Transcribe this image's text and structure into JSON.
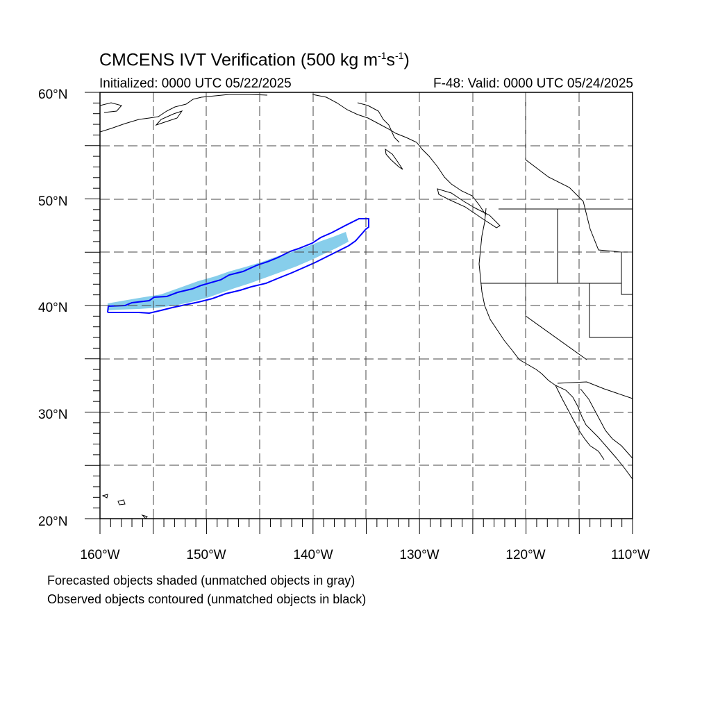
{
  "header": {
    "title_main": "CMCENS IVT Verification (500 kg m",
    "title_sup1": "-1",
    "title_mid": "s",
    "title_sup2": "-1",
    "title_end": ")",
    "initialized": "Initialized: 0000 UTC 05/22/2025",
    "valid": "F-48: Valid: 0000 UTC 05/24/2025"
  },
  "map": {
    "lon_range": [
      -160,
      -110
    ],
    "lat_range": [
      20,
      60
    ],
    "lat_labels": [
      "20°N",
      "30°N",
      "40°N",
      "50°N",
      "60°N"
    ],
    "lon_labels": [
      "160°W",
      "150°W",
      "140°W",
      "130°W",
      "120°W",
      "110°W"
    ],
    "forecast_color": "#87ceeb",
    "observed_color": "#0000ff",
    "coast_color": "#000000",
    "grid_color": "#444444"
  },
  "legend": {
    "line1": "Forecasted objects shaded (unmatched objects in gray)",
    "line2": "Observed objects contoured (unmatched objects in black)"
  }
}
